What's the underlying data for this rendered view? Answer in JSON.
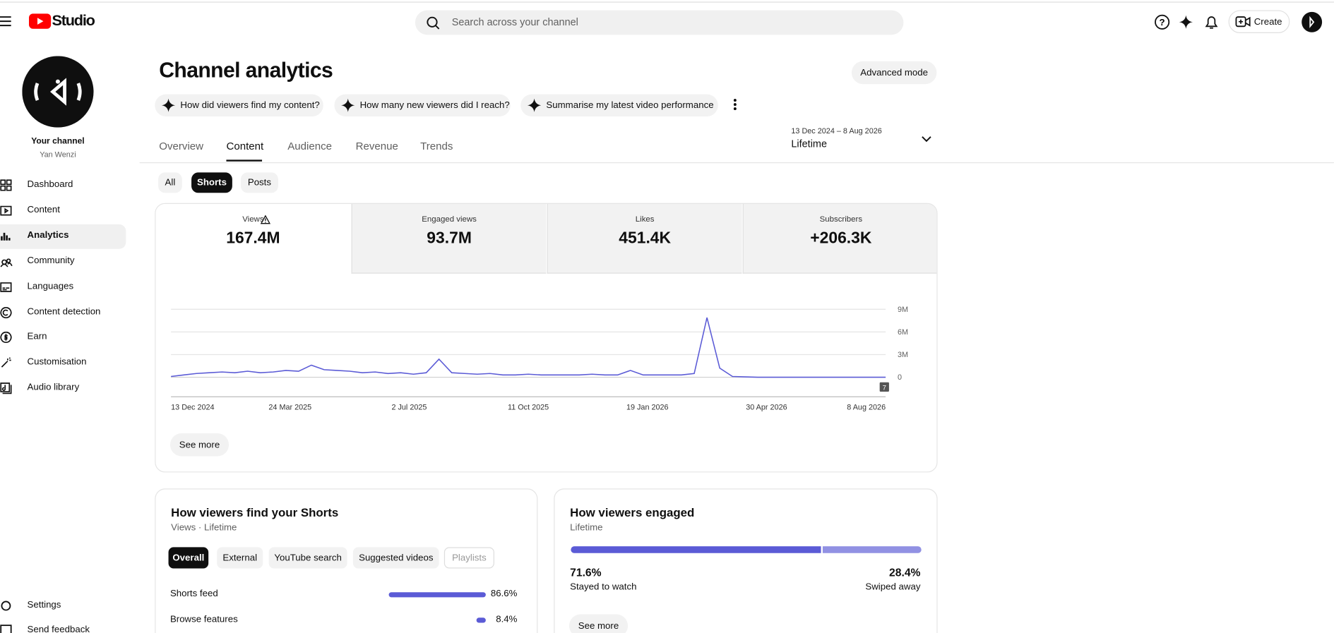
{
  "header": {
    "logo": "Studio",
    "search_placeholder": "Search across your channel",
    "create": "Create"
  },
  "sidebar": {
    "channel_label": "Your channel",
    "channel_name": "Yan Wenzi",
    "nav": [
      "Dashboard",
      "Content",
      "Analytics",
      "Community",
      "Languages",
      "Content detection",
      "Earn",
      "Customisation",
      "Audio library"
    ],
    "footer": [
      "Settings",
      "Send feedback"
    ]
  },
  "main": {
    "title": "Channel analytics",
    "advanced_mode": "Advanced mode",
    "prompts": [
      "How did viewers find my content?",
      "How many new viewers did I reach?",
      "Summarise my latest video performance"
    ],
    "tabs": [
      "Overview",
      "Content",
      "Audience",
      "Revenue",
      "Trends"
    ],
    "date_range": {
      "range": "13 Dec 2024 – 8 Aug 2026",
      "label": "Lifetime"
    },
    "filters": [
      "All",
      "Shorts",
      "Posts"
    ],
    "metrics": [
      {
        "label": "Views",
        "value": "167.4M"
      },
      {
        "label": "Engaged views",
        "value": "93.7M"
      },
      {
        "label": "Likes",
        "value": "451.4K"
      },
      {
        "label": "Subscribers",
        "value": "+206.3K"
      }
    ],
    "chart": {
      "type": "line",
      "color": "#5b5bd6",
      "values": [
        100000,
        300000,
        500000,
        600000,
        700000,
        600000,
        800000,
        600000,
        700000,
        900000,
        800000,
        1600000,
        1000000,
        900000,
        800000,
        600000,
        700000,
        500000,
        600000,
        400000,
        600000,
        2400000,
        600000,
        500000,
        400000,
        500000,
        300000,
        300000,
        400000,
        300000,
        300000,
        300000,
        300000,
        400000,
        300000,
        300000,
        900000,
        300000,
        300000,
        300000,
        300000,
        500000,
        7900000,
        1200000,
        100000,
        50000,
        0,
        0,
        0,
        0,
        0,
        0,
        0,
        0,
        0,
        0,
        0
      ],
      "ylim": [
        0,
        9000000
      ],
      "yticks": [
        0,
        {
          "value": 3000000,
          "label": "3M"
        },
        {
          "value": 6000000,
          "label": "6M"
        },
        {
          "value": 9000000,
          "label": "9M"
        }
      ],
      "xtick_labels": [
        "13 Dec 2024",
        "24 Mar 2025",
        "2 Jul 2025",
        "11 Oct 2025",
        "19 Jan 2026",
        "30 Apr 2026",
        "8 Aug 2026"
      ],
      "badge": "7"
    },
    "see_more": "See more",
    "discovery": {
      "title": "How viewers find your Shorts",
      "subtitle": "Views · Lifetime",
      "filters": [
        "Overall",
        "External",
        "YouTube search",
        "Suggested videos",
        "Playlists"
      ],
      "rows": [
        {
          "label": "Shorts feed",
          "value": 86.6,
          "value_label": "86.6%"
        },
        {
          "label": "Browse features",
          "value": 8.4,
          "value_label": "8.4%"
        }
      ]
    },
    "engagement": {
      "title": "How viewers engaged",
      "subtitle": "Lifetime",
      "stayed": {
        "value": 71.6,
        "value_label": "71.6%",
        "label": "Stayed to watch"
      },
      "swiped": {
        "value": 28.4,
        "value_label": "28.4%",
        "label": "Swiped away"
      },
      "see_more": "See more"
    }
  }
}
